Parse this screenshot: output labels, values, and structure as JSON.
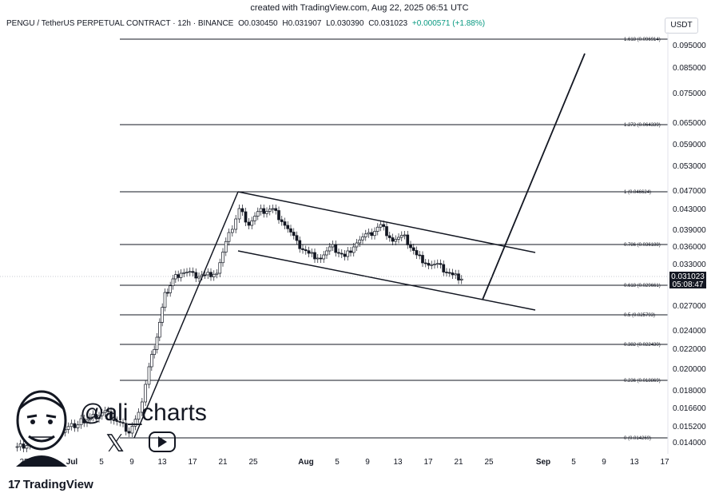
{
  "watermark_top": "created with TradingView.com, Aug 22, 2025 06:51 UTC",
  "header": {
    "symbol": "PENGU / TetherUS PERPETUAL CONTRACT · 12h · BINANCE",
    "open": "O0.030450",
    "high": "H0.031907",
    "low": "L0.030390",
    "close": "C0.031023",
    "change": "+0.000571 (+1.88%)"
  },
  "currency_button": "USDT",
  "price_axis": [
    "0.095000",
    "0.085000",
    "0.075000",
    "0.065000",
    "0.059000",
    "0.053000",
    "0.047000",
    "0.043000",
    "0.039000",
    "0.036000",
    "0.033000",
    "0.027000",
    "0.024000",
    "0.022000",
    "0.020000",
    "0.018000",
    "0.016600",
    "0.015200",
    "0.014000"
  ],
  "price_tag": {
    "price": "0.031023",
    "countdown": "05:08:47"
  },
  "fib_levels": [
    {
      "label": "1.618 (0.096914)"
    },
    {
      "label": "1.272 (0.064339)"
    },
    {
      "label": "1 (0.046624)"
    },
    {
      "label": "0.786 (0.036188)"
    },
    {
      "label": "0.618 (0.029661)"
    },
    {
      "label": "0.5 (0.025793)"
    },
    {
      "label": "0.382 (0.022430)"
    },
    {
      "label": "0.236 (0.018869)"
    },
    {
      "label": "0 (0.014269)"
    }
  ],
  "time_axis": [
    "25",
    "Jul",
    "5",
    "9",
    "13",
    "17",
    "21",
    "25",
    "Aug",
    "5",
    "9",
    "13",
    "17",
    "21",
    "25",
    "Sep",
    "5",
    "9",
    "13",
    "17"
  ],
  "social": {
    "handle": "@ali_charts"
  },
  "brand": {
    "name": "TradingView",
    "logo": "17"
  },
  "colors": {
    "up": "#089981",
    "down": "#131722",
    "lines": "#131722"
  }
}
